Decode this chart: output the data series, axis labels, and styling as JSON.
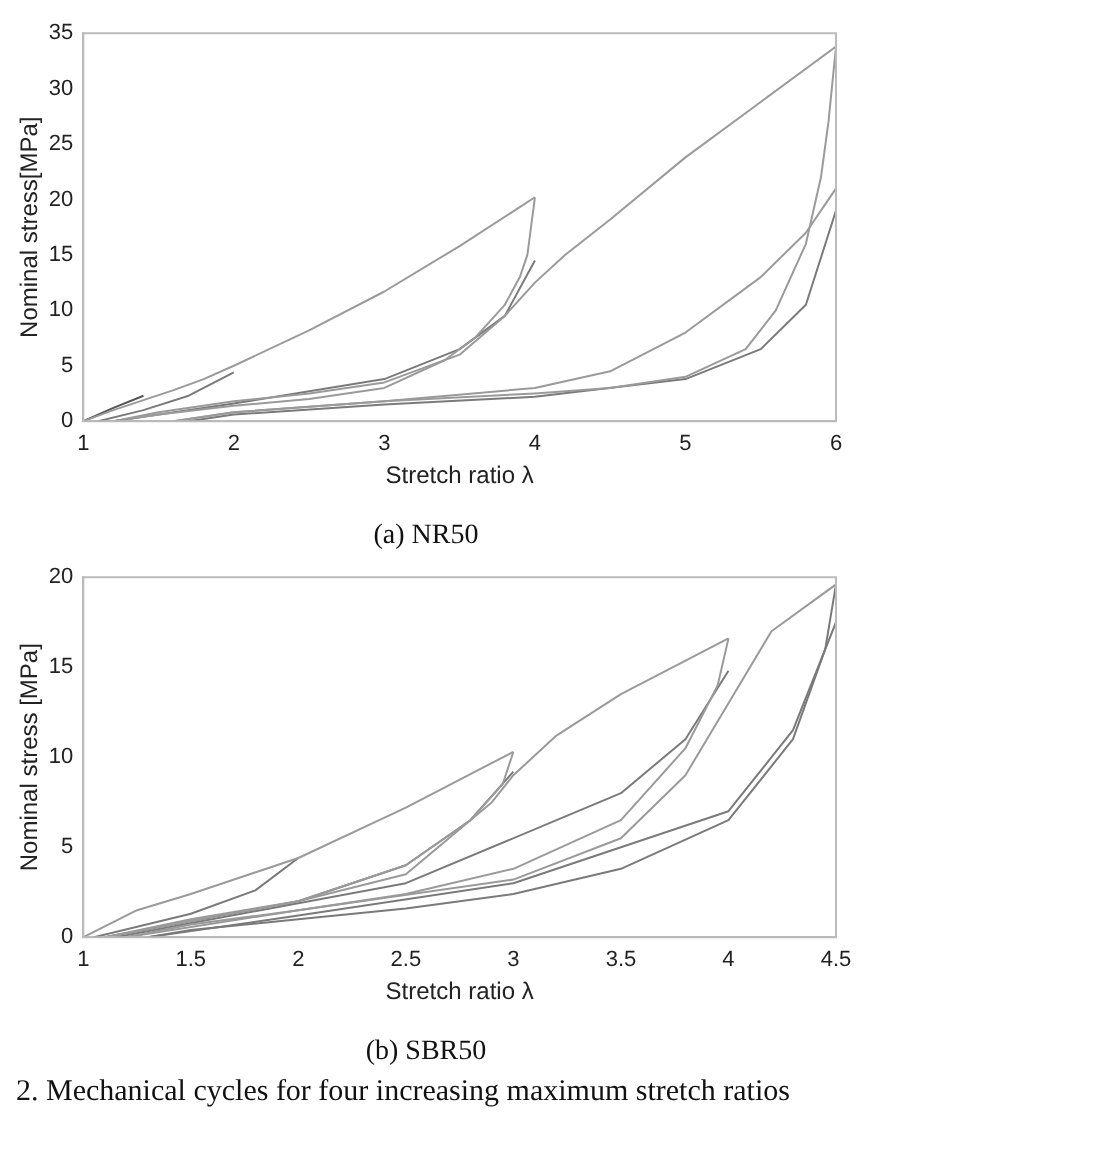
{
  "chart_data": [
    {
      "type": "line",
      "title": "(a) NR50",
      "xlabel": "Stretch ratio λ",
      "ylabel": "Nominal stress[MPa]",
      "xlim": [
        1,
        6
      ],
      "ylim": [
        0,
        35
      ],
      "xticks": [
        1,
        2,
        3,
        4,
        5,
        6
      ],
      "yticks": [
        0,
        5,
        10,
        15,
        20,
        25,
        30,
        35
      ],
      "grid": false,
      "series": [
        {
          "color": "#9a9a9a",
          "x": [
            1,
            1.2,
            1.4,
            1.6,
            1.8,
            2,
            2.5,
            3,
            3.5,
            4
          ],
          "values": [
            0,
            1,
            1.9,
            2.8,
            3.8,
            5,
            8.2,
            11.7,
            15.8,
            20.2
          ]
        },
        {
          "color": "#9a9a9a",
          "x": [
            4,
            3.95,
            3.9,
            3.8,
            3.6,
            3.4,
            3,
            2.5,
            2,
            1.5,
            1.2
          ],
          "values": [
            20.2,
            15,
            13,
            10.5,
            7.5,
            5.5,
            3,
            2,
            1.4,
            0.6,
            0
          ]
        },
        {
          "color": "#9a9a9a",
          "x": [
            1.2,
            1.5,
            2,
            2.5,
            3,
            3.5,
            3.8,
            4,
            4.2,
            4.5,
            5,
            5.5,
            6
          ],
          "values": [
            0,
            0.8,
            1.8,
            2.5,
            3.5,
            6,
            9.5,
            12.5,
            15,
            18.2,
            23.8,
            28.8,
            33.8
          ]
        },
        {
          "color": "#9a9a9a",
          "x": [
            6,
            5.95,
            5.9,
            5.8,
            5.6,
            5.4,
            5,
            4.5,
            4,
            3,
            2,
            1.6
          ],
          "values": [
            33.8,
            27,
            22,
            16,
            10,
            6.5,
            4,
            3,
            2.5,
            1.8,
            0.8,
            0
          ]
        },
        {
          "color": "#9a9a9a",
          "x": [
            1.6,
            2,
            3,
            4,
            4.5,
            5,
            5.5,
            5.8,
            6
          ],
          "values": [
            0,
            0.8,
            1.8,
            3,
            4.5,
            8,
            13,
            17,
            21
          ]
        },
        {
          "color": "#7a7a7a",
          "x": [
            1.7,
            2,
            3,
            4,
            5,
            5.5,
            5.8,
            6
          ],
          "values": [
            0,
            0.6,
            1.5,
            2.2,
            3.8,
            6.5,
            10.5,
            19
          ]
        },
        {
          "color": "#7a7a7a",
          "x": [
            1.2,
            2,
            3,
            3.5,
            3.8,
            4
          ],
          "values": [
            0,
            1.6,
            3.8,
            6.5,
            9.5,
            14.5
          ]
        },
        {
          "color": "#7a7a7a",
          "x": [
            1.1,
            1.4,
            1.7,
            2
          ],
          "values": [
            0,
            1,
            2.3,
            4.4
          ]
        },
        {
          "color": "#555555",
          "x": [
            1,
            1.2,
            1.4
          ],
          "values": [
            0,
            1.2,
            2.3
          ]
        }
      ]
    },
    {
      "type": "line",
      "title": "(b) SBR50",
      "xlabel": "Stretch ratio λ",
      "ylabel": "Nominal stress [MPa]",
      "xlim": [
        1,
        4.5
      ],
      "ylim": [
        0,
        20
      ],
      "xticks": [
        1,
        1.5,
        2,
        2.5,
        3,
        3.5,
        4,
        4.5
      ],
      "yticks": [
        0,
        5,
        10,
        15,
        20
      ],
      "grid": false,
      "annotations": [
        "2. Mechanical cycles for four increasing maximum stretch ratios"
      ],
      "series": [
        {
          "color": "#9a9a9a",
          "x": [
            1,
            1.25,
            1.5,
            1.75,
            2,
            2.5,
            3
          ],
          "values": [
            0,
            1.5,
            2.4,
            3.4,
            4.4,
            7.2,
            10.3
          ]
        },
        {
          "color": "#9a9a9a",
          "x": [
            3,
            2.95,
            2.8,
            2.5,
            2,
            1.5,
            1.1
          ],
          "values": [
            10.3,
            8.5,
            6.5,
            4,
            2,
            0.9,
            0
          ]
        },
        {
          "color": "#9a9a9a",
          "x": [
            1.1,
            1.5,
            2,
            2.5,
            2.9,
            3,
            3.2,
            3.5,
            4
          ],
          "values": [
            0,
            1,
            2,
            3.5,
            7.5,
            9,
            11.2,
            13.5,
            16.6
          ]
        },
        {
          "color": "#9a9a9a",
          "x": [
            4,
            3.95,
            3.8,
            3.5,
            3,
            2.5,
            2,
            1.5,
            1.2
          ],
          "values": [
            16.6,
            14,
            10.5,
            6.5,
            3.8,
            2.4,
            1.5,
            0.7,
            0
          ]
        },
        {
          "color": "#9a9a9a",
          "x": [
            1.2,
            2,
            3,
            3.5,
            3.8,
            4,
            4.2,
            4.5
          ],
          "values": [
            0,
            1.5,
            3.2,
            5.5,
            9,
            13,
            17,
            19.6
          ]
        },
        {
          "color": "#7a7a7a",
          "x": [
            4.5,
            4.45,
            4.3,
            4,
            3.5,
            3,
            2.5,
            2,
            1.5,
            1.3
          ],
          "values": [
            19.6,
            16,
            11,
            6.5,
            3.8,
            2.4,
            1.6,
            1,
            0.4,
            0
          ]
        },
        {
          "color": "#7a7a7a",
          "x": [
            1.3,
            2,
            3,
            4,
            4.3,
            4.5
          ],
          "values": [
            0,
            1.2,
            3,
            7,
            11.5,
            17.5
          ]
        },
        {
          "color": "#7a7a7a",
          "x": [
            1.05,
            1.5,
            1.8,
            2
          ],
          "values": [
            0,
            1.3,
            2.6,
            4.4
          ]
        },
        {
          "color": "#7a7a7a",
          "x": [
            1.1,
            2,
            2.5,
            2.8,
            3
          ],
          "values": [
            0,
            2,
            4,
            6.5,
            9.2
          ]
        },
        {
          "color": "#7a7a7a",
          "x": [
            1.15,
            2.5,
            3.5,
            3.8,
            4
          ],
          "values": [
            0,
            3,
            8,
            11,
            14.8
          ]
        }
      ]
    }
  ]
}
